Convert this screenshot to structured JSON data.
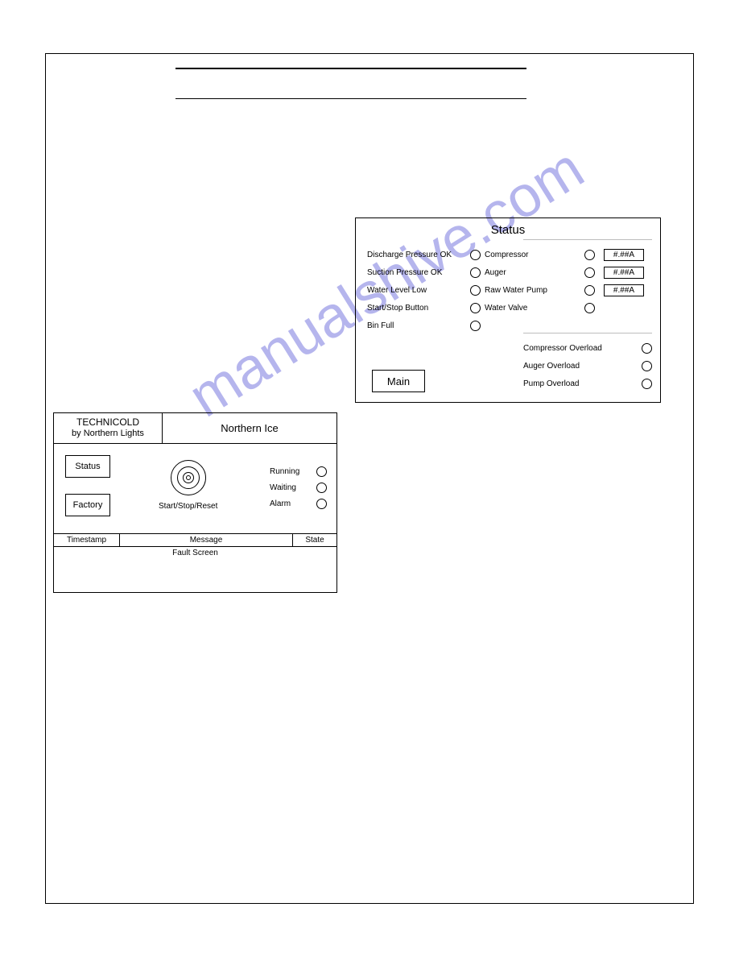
{
  "watermark": "manualshive.com",
  "status_panel": {
    "title": "Status",
    "left_items": [
      {
        "label": "Discharge Pressure OK"
      },
      {
        "label": "Suction Pressure OK"
      },
      {
        "label": "Water Level Low"
      },
      {
        "label": "Start/Stop Button"
      },
      {
        "label": "Bin Full"
      }
    ],
    "right_items": [
      {
        "label": "Compressor",
        "value": "#.##A"
      },
      {
        "label": "Auger",
        "value": "#.##A"
      },
      {
        "label": "Raw Water Pump",
        "value": "#.##A"
      },
      {
        "label": "Water Valve"
      }
    ],
    "overload_items": [
      {
        "label": "Compressor Overload"
      },
      {
        "label": "Auger Overload"
      },
      {
        "label": "Pump Overload"
      }
    ],
    "main_button": "Main"
  },
  "main_panel": {
    "brand_line1": "TECHNICOLD",
    "brand_line2": "by Northern Lights",
    "product": "Northern Ice",
    "status_button": "Status",
    "factory_button": "Factory",
    "ssr_label": "Start/Stop/Reset",
    "indicators": [
      {
        "label": "Running"
      },
      {
        "label": "Waiting"
      },
      {
        "label": "Alarm"
      }
    ],
    "table_headers": {
      "timestamp": "Timestamp",
      "message": "Message",
      "state": "State"
    },
    "fault_label": "Fault Screen"
  },
  "colors": {
    "border": "#000000",
    "background": "#ffffff",
    "watermark": "#7a7ae0",
    "divider": "#bdbdbd"
  }
}
